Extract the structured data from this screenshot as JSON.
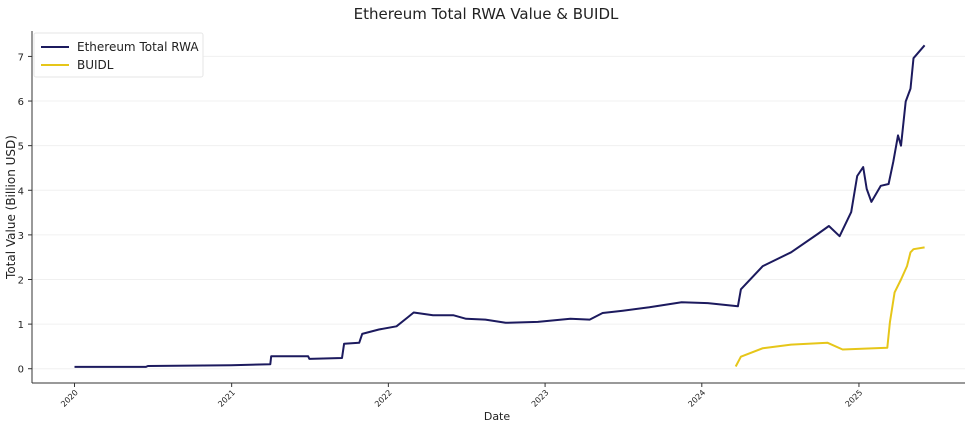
{
  "chart_data": {
    "type": "line",
    "title": "Ethereum Total RWA Value & BUIDL",
    "xlabel": "Date",
    "ylabel": "Total Value (Billion USD)",
    "xlim": [
      "2019-09-24",
      "2025-09-05"
    ],
    "ylim": [
      -0.32,
      7.57
    ],
    "x_ticks": [
      "2020",
      "2021",
      "2022",
      "2023",
      "2024",
      "2025"
    ],
    "y_ticks": [
      "0",
      "1",
      "2",
      "3",
      "4",
      "5",
      "6",
      "7"
    ],
    "grid": "horizontal",
    "legend_position": "top-left",
    "series": [
      {
        "name": "Ethereum Total RWA",
        "color": "#1c1a5e",
        "points": [
          [
            "2020-01-01",
            0.04
          ],
          [
            "2020-06-15",
            0.04
          ],
          [
            "2020-06-20",
            0.06
          ],
          [
            "2020-12-31",
            0.08
          ],
          [
            "2021-04-01",
            0.1
          ],
          [
            "2021-04-03",
            0.28
          ],
          [
            "2021-06-28",
            0.28
          ],
          [
            "2021-07-01",
            0.22
          ],
          [
            "2021-09-15",
            0.24
          ],
          [
            "2021-09-20",
            0.56
          ],
          [
            "2021-10-25",
            0.58
          ],
          [
            "2021-11-01",
            0.78
          ],
          [
            "2021-12-10",
            0.88
          ],
          [
            "2022-01-20",
            0.95
          ],
          [
            "2022-02-15",
            1.15
          ],
          [
            "2022-03-01",
            1.26
          ],
          [
            "2022-04-15",
            1.2
          ],
          [
            "2022-06-01",
            1.2
          ],
          [
            "2022-07-01",
            1.12
          ],
          [
            "2022-08-15",
            1.1
          ],
          [
            "2022-10-01",
            1.03
          ],
          [
            "2022-12-15",
            1.05
          ],
          [
            "2023-03-01",
            1.12
          ],
          [
            "2023-04-15",
            1.1
          ],
          [
            "2023-05-15",
            1.25
          ],
          [
            "2023-07-01",
            1.3
          ],
          [
            "2023-09-01",
            1.38
          ],
          [
            "2023-11-15",
            1.49
          ],
          [
            "2024-01-15",
            1.47
          ],
          [
            "2024-03-25",
            1.4
          ],
          [
            "2024-04-01",
            1.78
          ],
          [
            "2024-05-22",
            2.3
          ],
          [
            "2024-07-27",
            2.61
          ],
          [
            "2024-09-27",
            3.02
          ],
          [
            "2024-10-23",
            3.2
          ],
          [
            "2024-11-17",
            2.97
          ],
          [
            "2024-12-14",
            3.51
          ],
          [
            "2024-12-28",
            4.32
          ],
          [
            "2025-01-11",
            4.52
          ],
          [
            "2025-01-19",
            4.03
          ],
          [
            "2025-01-30",
            3.74
          ],
          [
            "2025-02-21",
            4.1
          ],
          [
            "2025-03-11",
            4.14
          ],
          [
            "2025-03-22",
            4.64
          ],
          [
            "2025-04-02",
            5.23
          ],
          [
            "2025-04-09",
            5.0
          ],
          [
            "2025-04-20",
            5.99
          ],
          [
            "2025-05-01",
            6.28
          ],
          [
            "2025-05-08",
            6.96
          ],
          [
            "2025-06-03",
            7.25
          ]
        ]
      },
      {
        "name": "BUIDL",
        "color": "#e6c619",
        "points": [
          [
            "2024-03-20",
            0.05
          ],
          [
            "2024-04-01",
            0.27
          ],
          [
            "2024-05-22",
            0.46
          ],
          [
            "2024-07-27",
            0.54
          ],
          [
            "2024-10-20",
            0.58
          ],
          [
            "2024-11-24",
            0.43
          ],
          [
            "2025-03-08",
            0.47
          ],
          [
            "2025-03-14",
            1.04
          ],
          [
            "2025-03-25",
            1.71
          ],
          [
            "2025-04-09",
            2.0
          ],
          [
            "2025-04-23",
            2.3
          ],
          [
            "2025-05-01",
            2.61
          ],
          [
            "2025-05-08",
            2.68
          ],
          [
            "2025-06-03",
            2.72
          ]
        ]
      }
    ]
  }
}
